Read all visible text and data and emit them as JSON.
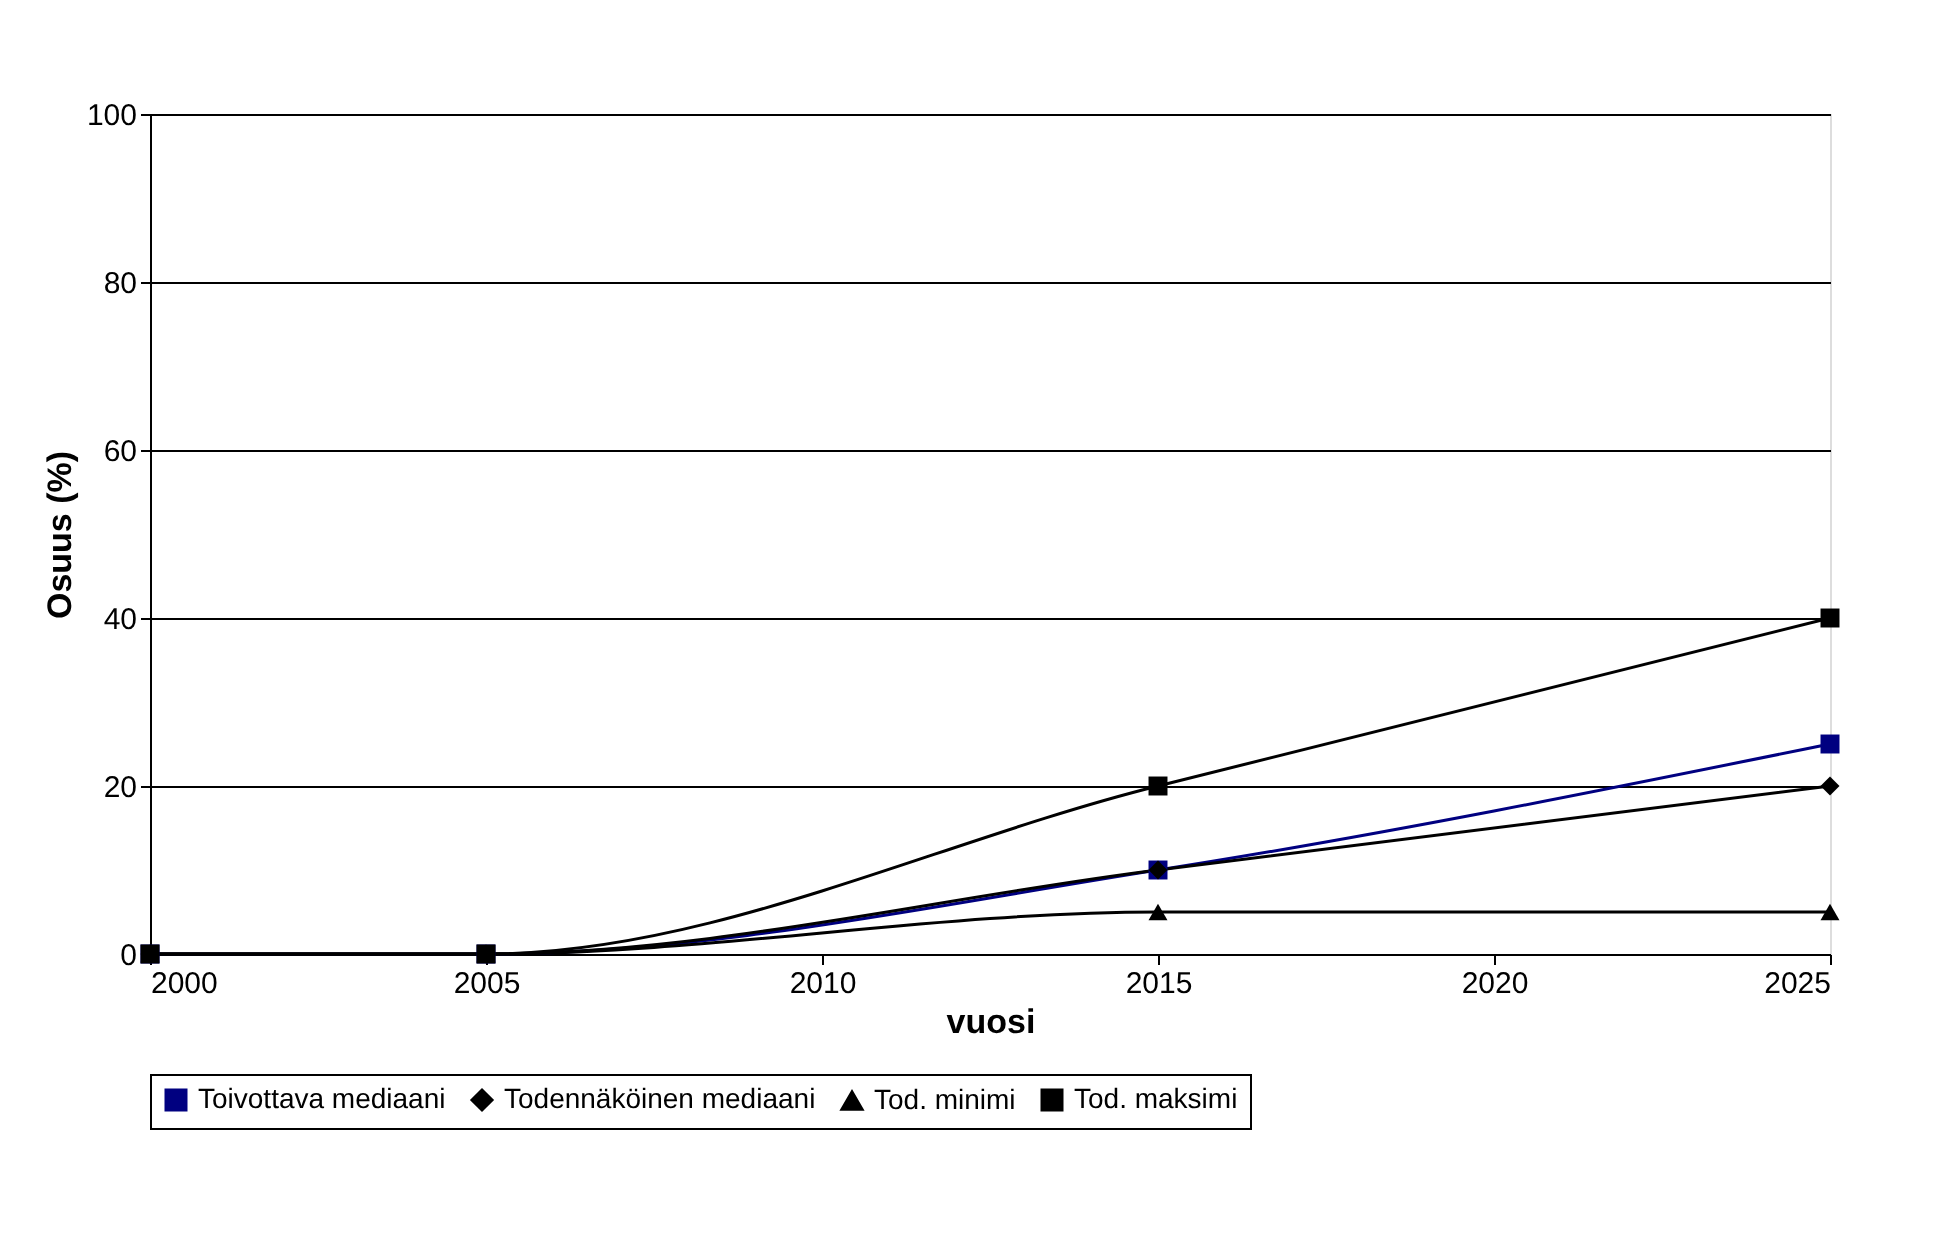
{
  "chart_data": {
    "type": "line",
    "xlabel": "vuosi",
    "ylabel": "Osuus (%)",
    "x": [
      2000,
      2005,
      2015,
      2025
    ],
    "series": [
      {
        "name": "Toivottava mediaani",
        "color": "#000080",
        "marker": "square",
        "values": [
          0,
          0,
          10,
          25
        ]
      },
      {
        "name": "Todennäköinen mediaani",
        "color": "#000000",
        "marker": "diamond",
        "values": [
          0,
          0,
          10,
          20
        ]
      },
      {
        "name": "Tod. minimi",
        "color": "#000000",
        "marker": "triangle",
        "values": [
          0,
          0,
          5,
          5
        ]
      },
      {
        "name": "Tod. maksimi",
        "color": "#000000",
        "marker": "square",
        "values": [
          0,
          0,
          20,
          40
        ]
      }
    ],
    "xlim": [
      2000,
      2025
    ],
    "xticks": [
      2000,
      2005,
      2010,
      2015,
      2020,
      2025
    ],
    "ylim": [
      0,
      100
    ],
    "yticks": [
      0,
      20,
      40,
      60,
      80,
      100
    ],
    "grid": "y",
    "legend": "bottom"
  }
}
